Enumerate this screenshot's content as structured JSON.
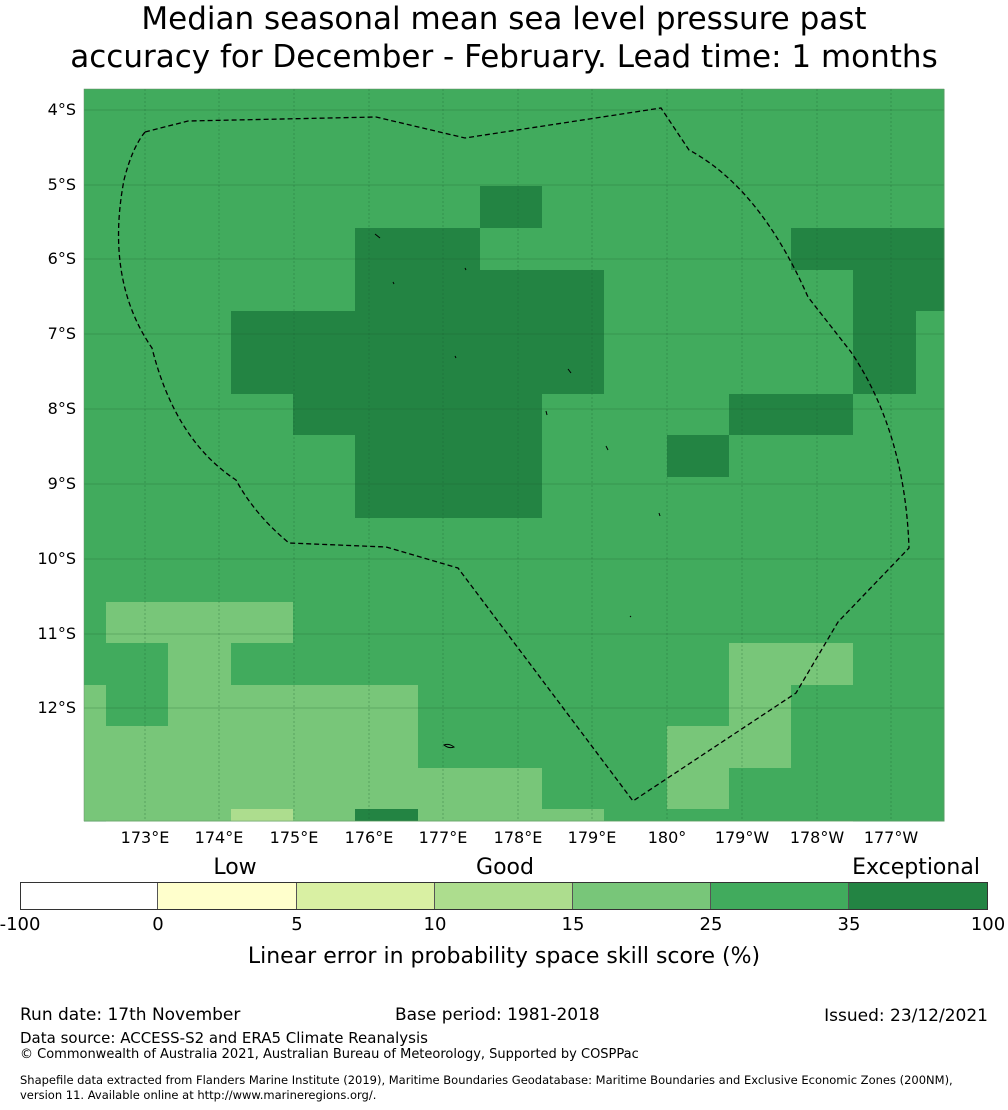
{
  "title_line1": "Median seasonal mean sea level pressure past",
  "title_line2": "accuracy for December - February. Lead time: 1 months",
  "map": {
    "lat_labels": [
      "4°S",
      "5°S",
      "6°S",
      "7°S",
      "8°S",
      "9°S",
      "10°S",
      "11°S",
      "12°S"
    ],
    "lon_labels": [
      "173°E",
      "174°E",
      "175°E",
      "176°E",
      "177°E",
      "178°E",
      "179°E",
      "180°",
      "179°W",
      "178°W",
      "177°W"
    ],
    "colors": {
      "c15_25": "#78c679",
      "c25_35": "#41ab5d",
      "c35_100": "#238443",
      "c10_15": "#addd8e",
      "grid": "#1a5c2f",
      "boundary": "#000000"
    },
    "region": "Exclusive Economic Zone (dashed)"
  },
  "colorbar": {
    "categories": [
      "Low",
      "Good",
      "Exceptional"
    ],
    "ticks": [
      "-100",
      "0",
      "5",
      "10",
      "15",
      "25",
      "35",
      "100"
    ],
    "segment_colors": [
      "#ffffff",
      "#ffffcc",
      "#d9f0a3",
      "#addd8e",
      "#78c679",
      "#41ab5d",
      "#238443"
    ],
    "label": "Linear error in probability space skill score (%)"
  },
  "footer": {
    "run_date": "Run date: 17th November",
    "base_period": "Base period: 1981-2018",
    "issued": "Issued: 23/12/2021",
    "data_source": "Data source: ACCESS-S2 and ERA5 Climate Reanalysis",
    "copyright": "© Commonwealth of Australia 2021, Australian Bureau of Meteorology, Supported by COSPPac",
    "shapefile_line1": "Shapefile data extracted from Flanders Marine Institute (2019), Maritime Boundaries Geodatabase: Maritime Boundaries and Exclusive Economic Zones (200NM),",
    "shapefile_line2": "version 11. Available online at http://www.marineregions.org/."
  }
}
